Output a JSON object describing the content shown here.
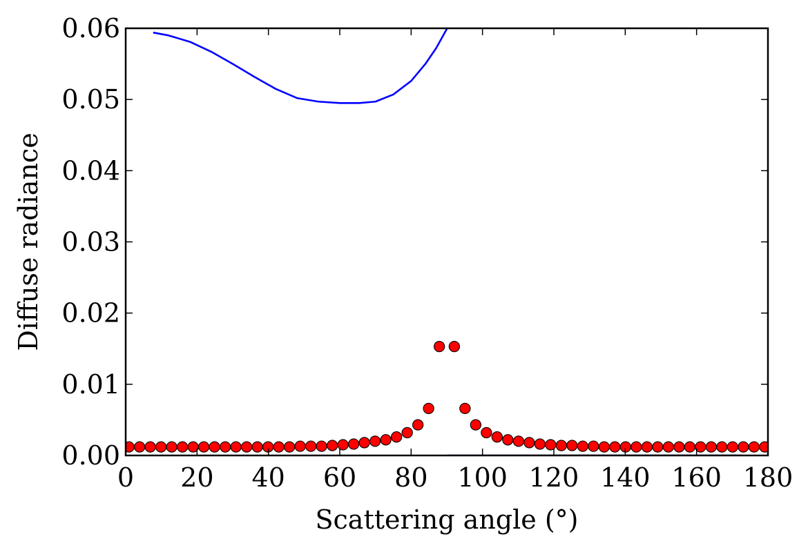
{
  "chart_data": {
    "type": "scatter",
    "title": "",
    "xlabel": "Scattering angle (°)",
    "ylabel": "Diffuse radiance",
    "xlim": [
      0,
      180
    ],
    "ylim": [
      0,
      0.06
    ],
    "x_ticks": [
      0,
      20,
      40,
      60,
      80,
      100,
      120,
      140,
      160,
      180
    ],
    "x_tick_labels": [
      "0",
      "20",
      "40",
      "60",
      "80",
      "100",
      "120",
      "140",
      "160",
      "180"
    ],
    "y_ticks": [
      0,
      0.01,
      0.02,
      0.03,
      0.04,
      0.05,
      0.06
    ],
    "y_tick_labels": [
      "0.00",
      "0.01",
      "0.02",
      "0.03",
      "0.04",
      "0.05",
      "0.06"
    ],
    "grid": false,
    "legend": "none",
    "series": [
      {
        "type": "scatter",
        "color": "#ff0000",
        "marker": "circle",
        "points": [
          [
            0.9,
            0.0012
          ],
          [
            3.9,
            0.0012
          ],
          [
            6.9,
            0.0012
          ],
          [
            9.9,
            0.0012
          ],
          [
            12.9,
            0.0012
          ],
          [
            15.9,
            0.0012
          ],
          [
            18.9,
            0.0012
          ],
          [
            21.9,
            0.0012
          ],
          [
            24.9,
            0.0012
          ],
          [
            27.9,
            0.0012
          ],
          [
            30.9,
            0.0012
          ],
          [
            33.9,
            0.0012
          ],
          [
            36.9,
            0.0012
          ],
          [
            39.9,
            0.0012
          ],
          [
            42.9,
            0.0012
          ],
          [
            45.9,
            0.0012
          ],
          [
            48.9,
            0.0013
          ],
          [
            51.9,
            0.0013
          ],
          [
            54.9,
            0.0013
          ],
          [
            57.9,
            0.0014
          ],
          [
            60.9,
            0.0015
          ],
          [
            63.9,
            0.0016
          ],
          [
            66.9,
            0.0018
          ],
          [
            69.9,
            0.002
          ],
          [
            72.9,
            0.0022
          ],
          [
            75.9,
            0.0026
          ],
          [
            78.9,
            0.0032
          ],
          [
            81.9,
            0.0043
          ],
          [
            84.9,
            0.0066
          ],
          [
            87.9,
            0.0153
          ],
          [
            92.1,
            0.0153
          ],
          [
            95.1,
            0.0066
          ],
          [
            98.1,
            0.0043
          ],
          [
            101.1,
            0.0032
          ],
          [
            104.1,
            0.0026
          ],
          [
            107.1,
            0.0022
          ],
          [
            110.1,
            0.002
          ],
          [
            113.1,
            0.0018
          ],
          [
            116.1,
            0.0016
          ],
          [
            119.1,
            0.0015
          ],
          [
            122.1,
            0.0014
          ],
          [
            125.1,
            0.0014
          ],
          [
            128.1,
            0.0013
          ],
          [
            131.1,
            0.0013
          ],
          [
            134.1,
            0.0012
          ],
          [
            137.1,
            0.0012
          ],
          [
            140.1,
            0.0012
          ],
          [
            143.1,
            0.0012
          ],
          [
            146.1,
            0.0012
          ],
          [
            149.1,
            0.0012
          ],
          [
            152.1,
            0.0012
          ],
          [
            155.1,
            0.0012
          ],
          [
            158.1,
            0.0012
          ],
          [
            161.1,
            0.0012
          ],
          [
            164.1,
            0.0012
          ],
          [
            167.1,
            0.0012
          ],
          [
            170.1,
            0.0012
          ],
          [
            173.1,
            0.0012
          ],
          [
            176.1,
            0.0012
          ],
          [
            179.1,
            0.0012
          ]
        ]
      },
      {
        "type": "line",
        "color": "#0000ff",
        "points": [
          [
            7.7,
            0.0594
          ],
          [
            12,
            0.059
          ],
          [
            18,
            0.0581
          ],
          [
            24,
            0.0567
          ],
          [
            30,
            0.055
          ],
          [
            36,
            0.0532
          ],
          [
            42,
            0.0515
          ],
          [
            48,
            0.0502
          ],
          [
            54,
            0.0497
          ],
          [
            60,
            0.0495
          ],
          [
            65.5,
            0.0495
          ],
          [
            70,
            0.0497
          ],
          [
            75,
            0.0507
          ],
          [
            80,
            0.0526
          ],
          [
            84,
            0.055
          ],
          [
            87,
            0.0572
          ],
          [
            90.1,
            0.06
          ]
        ]
      },
      {
        "type": "line",
        "color": "#000080",
        "points": [
          [
            90.1,
            0.0
          ],
          [
            172.4,
            0.0
          ]
        ]
      }
    ]
  }
}
